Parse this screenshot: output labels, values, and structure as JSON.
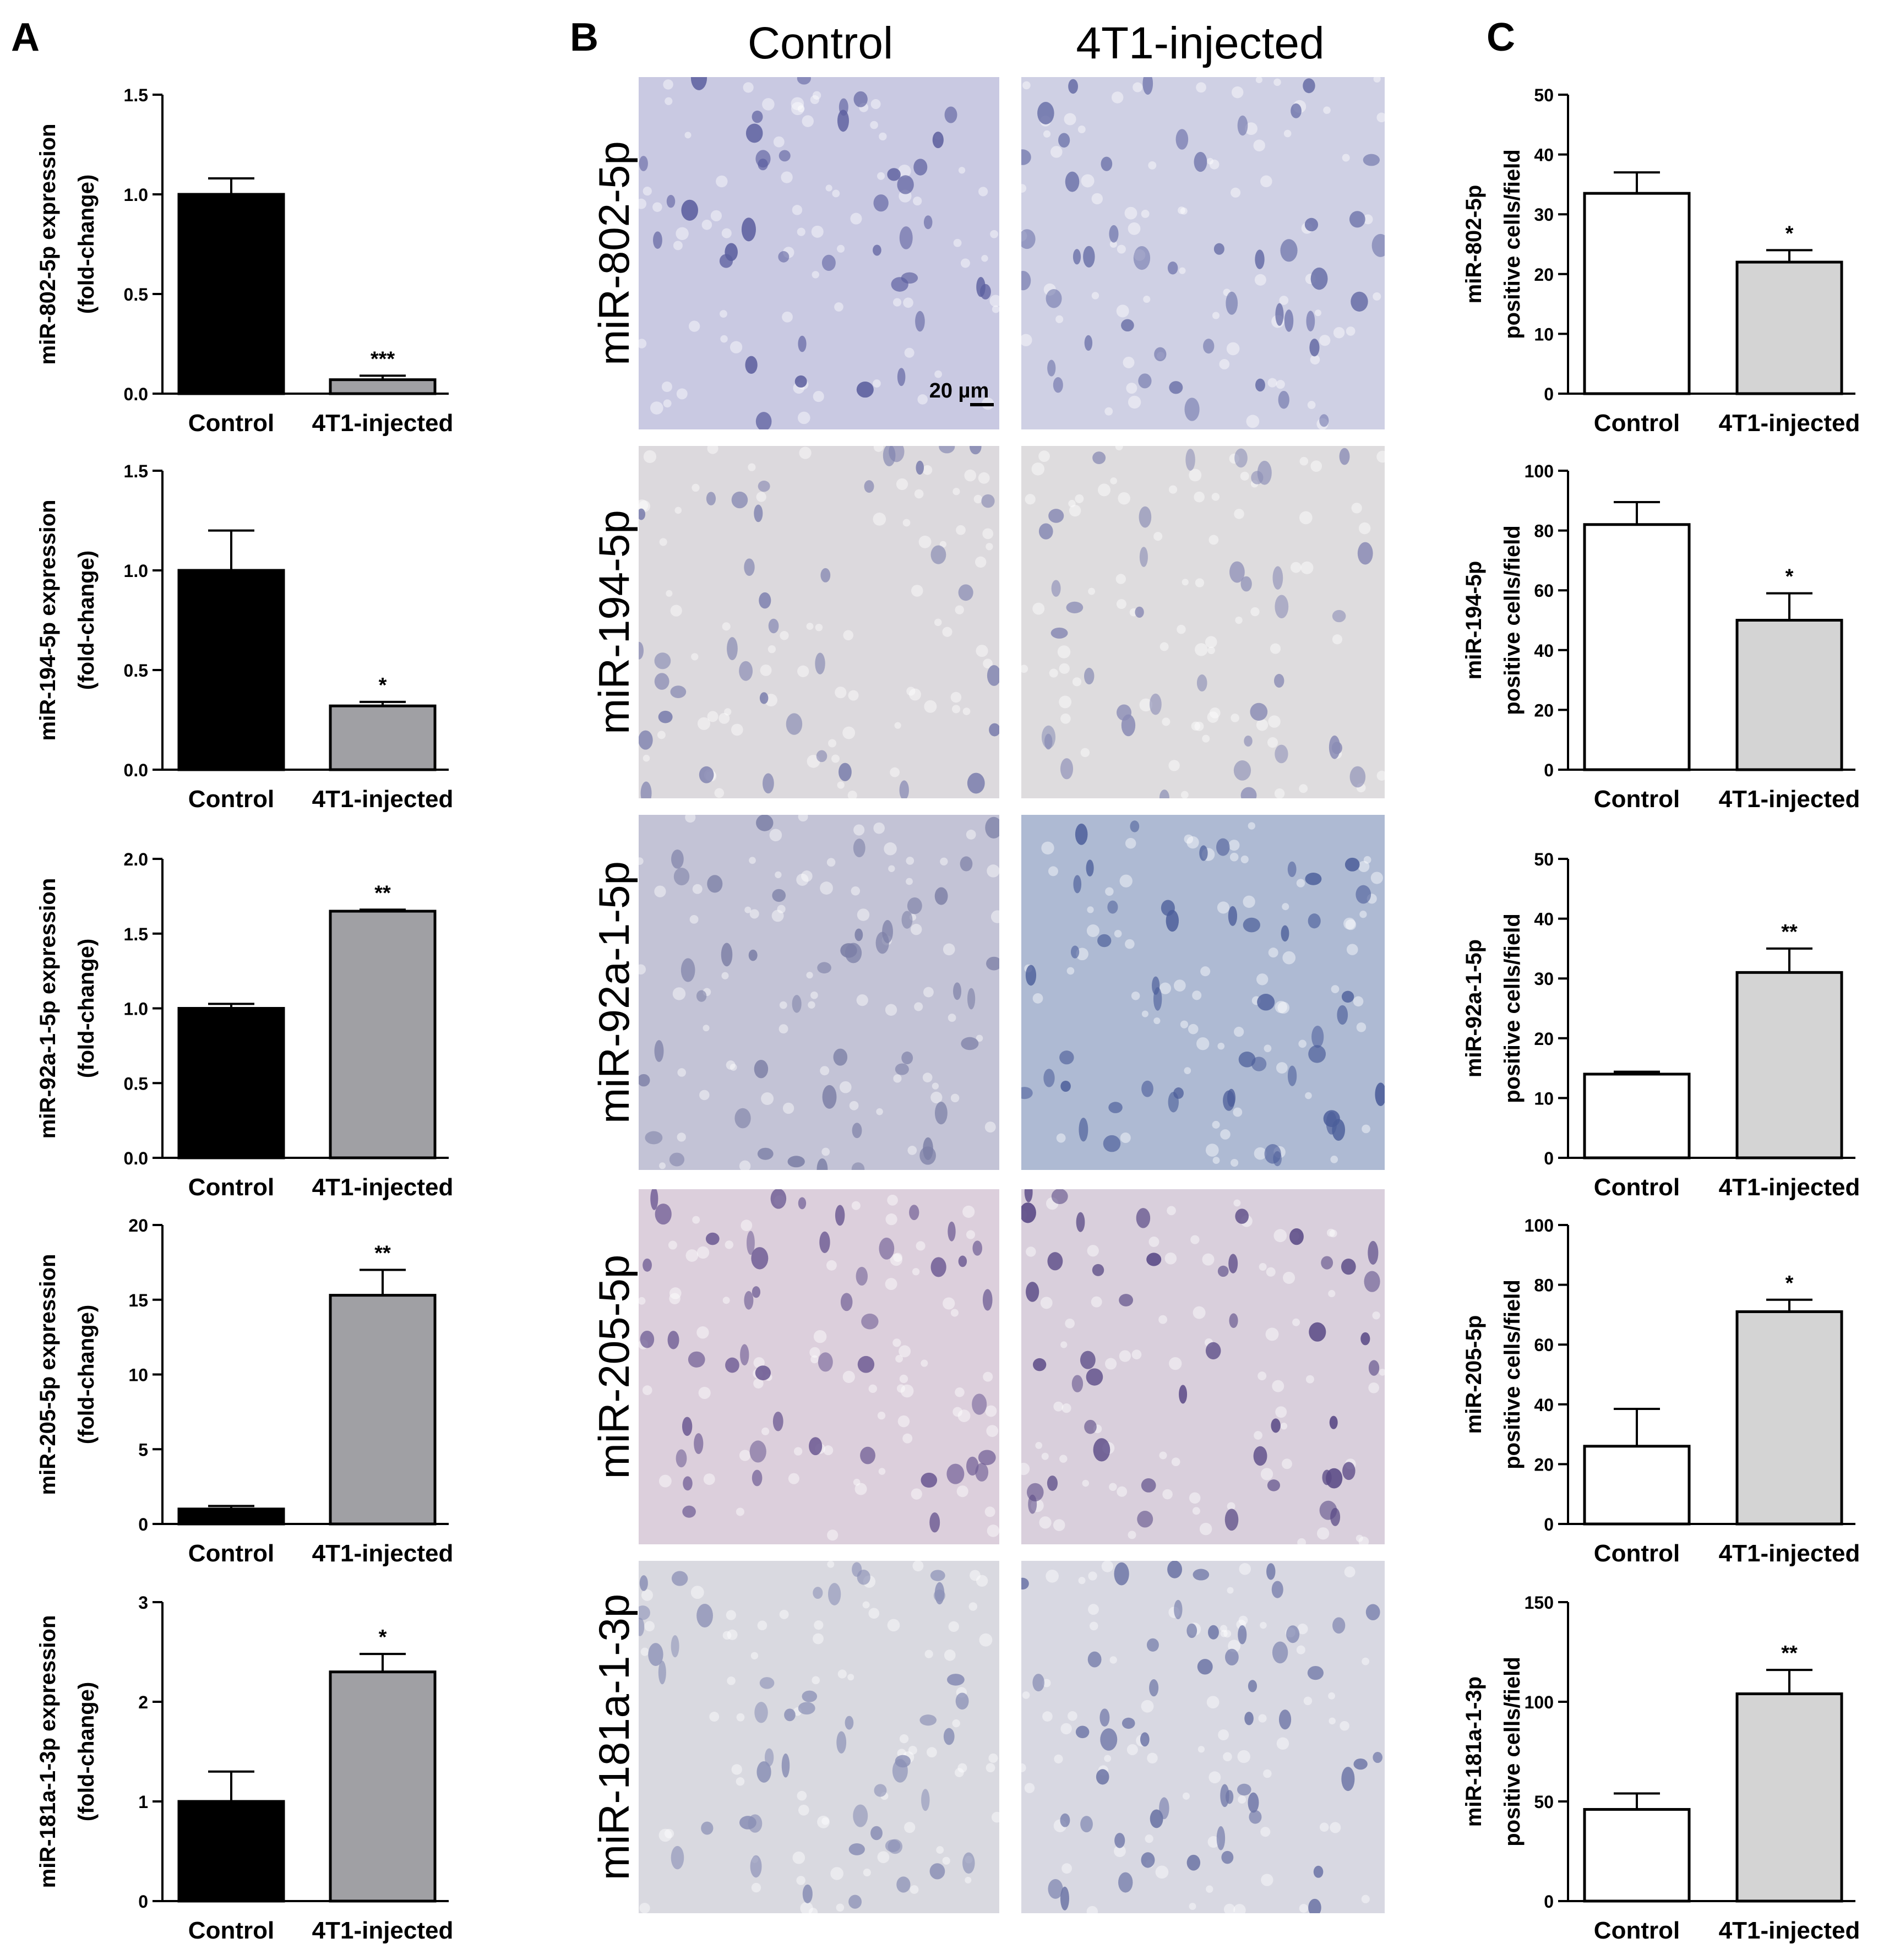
{
  "panels": {
    "A": {
      "letter": "A"
    },
    "B": {
      "letter": "B",
      "columns": [
        "Control",
        "4T1-injected"
      ],
      "rows": [
        "miR-802-5p",
        "miR-194-5p",
        "miR-92a-1-5p",
        "miR-205-5p",
        "miR-181a-1-3p"
      ],
      "scale_bar": "20 µm",
      "tissue_colors": [
        [
          "#c9c9e2",
          "#cfd0e4"
        ],
        [
          "#dcd9dd",
          "#dedcde"
        ],
        [
          "#c3c3d6",
          "#aebad3"
        ],
        [
          "#dccfdc",
          "#d9cfdc"
        ],
        [
          "#d9d9e0",
          "#d8d8e2"
        ]
      ],
      "cell_colors": [
        [
          "#5b5e9e",
          "#6a70a8"
        ],
        [
          "#7c7fad",
          "#8a8cb5"
        ],
        [
          "#7c7fa6",
          "#4c5e9a"
        ],
        [
          "#6e5c94",
          "#5a4a86"
        ],
        [
          "#8a8fb5",
          "#6d75a6"
        ]
      ]
    },
    "C": {
      "letter": "C"
    }
  },
  "chart_data": [
    {
      "panel": "A",
      "type": "bar",
      "categories": [
        "Control",
        "4T1-injected"
      ],
      "values": [
        1.0,
        0.07
      ],
      "errors": [
        0.08,
        0.02
      ],
      "significance": [
        "",
        "***"
      ],
      "ylabel": [
        "miR-802-5p expression",
        "(fold-change)"
      ],
      "ylim": [
        0,
        1.5
      ],
      "yticks": [
        "0.0",
        "0.5",
        "1.0",
        "1.5"
      ],
      "colors": [
        "#000000",
        "#a0a0a4"
      ]
    },
    {
      "panel": "A",
      "type": "bar",
      "categories": [
        "Control",
        "4T1-injected"
      ],
      "values": [
        1.0,
        0.32
      ],
      "errors": [
        0.2,
        0.02
      ],
      "significance": [
        "",
        "*"
      ],
      "ylabel": [
        "miR-194-5p expression",
        "(fold-change)"
      ],
      "ylim": [
        0,
        1.5
      ],
      "yticks": [
        "0.0",
        "0.5",
        "1.0",
        "1.5"
      ],
      "colors": [
        "#000000",
        "#a0a0a4"
      ]
    },
    {
      "panel": "A",
      "type": "bar",
      "categories": [
        "Control",
        "4T1-injected"
      ],
      "values": [
        1.0,
        1.65
      ],
      "errors": [
        0.03,
        0.01
      ],
      "significance": [
        "",
        "**"
      ],
      "ylabel": [
        "miR-92a-1-5p expression",
        "(fold-change)"
      ],
      "ylim": [
        0,
        2.0
      ],
      "yticks": [
        "0.0",
        "0.5",
        "1.0",
        "1.5",
        "2.0"
      ],
      "colors": [
        "#000000",
        "#a0a0a4"
      ]
    },
    {
      "panel": "A",
      "type": "bar",
      "categories": [
        "Control",
        "4T1-injected"
      ],
      "values": [
        1.0,
        15.3
      ],
      "errors": [
        0.2,
        1.7
      ],
      "significance": [
        "",
        "**"
      ],
      "ylabel": [
        "miR-205-5p expression",
        "(fold-change)"
      ],
      "ylim": [
        0,
        20
      ],
      "yticks": [
        "0",
        "5",
        "10",
        "15",
        "20"
      ],
      "colors": [
        "#000000",
        "#a0a0a4"
      ]
    },
    {
      "panel": "A",
      "type": "bar",
      "categories": [
        "Control",
        "4T1-injected"
      ],
      "values": [
        1.0,
        2.3
      ],
      "errors": [
        0.3,
        0.18
      ],
      "significance": [
        "",
        "*"
      ],
      "ylabel": [
        "miR-181a-1-3p expression",
        "(fold-change)"
      ],
      "ylim": [
        0,
        3
      ],
      "yticks": [
        "0",
        "1",
        "2",
        "3"
      ],
      "colors": [
        "#000000",
        "#a0a0a4"
      ]
    },
    {
      "panel": "C",
      "type": "bar",
      "categories": [
        "Control",
        "4T1-injected"
      ],
      "values": [
        33.5,
        22
      ],
      "errors": [
        3.5,
        2
      ],
      "significance": [
        "",
        "*"
      ],
      "ylabel": [
        "miR-802-5p",
        "positive cells/field"
      ],
      "ylim": [
        0,
        50
      ],
      "yticks": [
        "0",
        "10",
        "20",
        "30",
        "40",
        "50"
      ],
      "colors": [
        "#ffffff",
        "#d4d4d4"
      ]
    },
    {
      "panel": "C",
      "type": "bar",
      "categories": [
        "Control",
        "4T1-injected"
      ],
      "values": [
        82,
        50
      ],
      "errors": [
        7.5,
        9
      ],
      "significance": [
        "",
        "*"
      ],
      "ylabel": [
        "miR-194-5p",
        "positive cells/field"
      ],
      "ylim": [
        0,
        100
      ],
      "yticks": [
        "0",
        "20",
        "40",
        "60",
        "80",
        "100"
      ],
      "colors": [
        "#ffffff",
        "#d4d4d4"
      ]
    },
    {
      "panel": "C",
      "type": "bar",
      "categories": [
        "Control",
        "4T1-injected"
      ],
      "values": [
        14,
        31
      ],
      "errors": [
        0.4,
        4
      ],
      "significance": [
        "",
        "**"
      ],
      "ylabel": [
        "miR-92a-1-5p",
        "positive cells/field"
      ],
      "ylim": [
        0,
        50
      ],
      "yticks": [
        "0",
        "10",
        "20",
        "30",
        "40",
        "50"
      ],
      "colors": [
        "#ffffff",
        "#d4d4d4"
      ]
    },
    {
      "panel": "C",
      "type": "bar",
      "categories": [
        "Control",
        "4T1-injected"
      ],
      "values": [
        26,
        71
      ],
      "errors": [
        12.5,
        4
      ],
      "significance": [
        "",
        "*"
      ],
      "ylabel": [
        "miR-205-5p",
        "positive cells/field"
      ],
      "ylim": [
        0,
        100
      ],
      "yticks": [
        "0",
        "20",
        "40",
        "60",
        "80",
        "100"
      ],
      "colors": [
        "#ffffff",
        "#d4d4d4"
      ]
    },
    {
      "panel": "C",
      "type": "bar",
      "categories": [
        "Control",
        "4T1-injected"
      ],
      "values": [
        46,
        104
      ],
      "errors": [
        8,
        12
      ],
      "significance": [
        "",
        "**"
      ],
      "ylabel": [
        "miR-181a-1-3p",
        "positive cells/field"
      ],
      "ylim": [
        0,
        150
      ],
      "yticks": [
        "0",
        "50",
        "100",
        "150"
      ],
      "colors": [
        "#ffffff",
        "#d4d4d4"
      ]
    }
  ]
}
